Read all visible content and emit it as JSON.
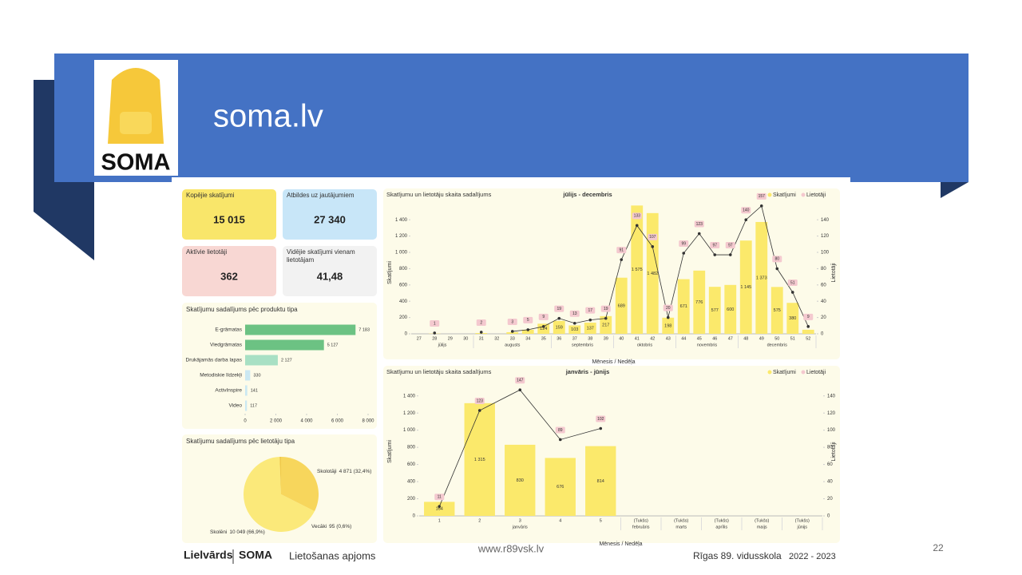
{
  "header": {
    "title": "soma.lv",
    "logo": "SOMA"
  },
  "kpis": [
    {
      "label": "Kopējie skatījumi",
      "value": "15 015"
    },
    {
      "label": "Atbildes uz jautājumiem",
      "value": "27 340"
    },
    {
      "label": "Aktīvie lietotāji",
      "value": "362"
    },
    {
      "label": "Vidējie skatījumi vienam lietotājam",
      "value": "41,48"
    }
  ],
  "chart_data": [
    {
      "type": "hbar",
      "title": "Skatījumu sadalījums pēc produktu tipa",
      "categories": [
        "E-grāmatas",
        "Viedgrāmatas",
        "Drukājamās darba lapas",
        "Metodiskie līdzekļi",
        "ActivInspire",
        "Video"
      ],
      "values": [
        7183,
        5127,
        2127,
        330,
        141,
        117
      ],
      "value_labels": [
        "7 183",
        "5 127",
        "2 127",
        "330",
        "141",
        "117"
      ],
      "colors": [
        "#6cc283",
        "#6cc283",
        "#a8e0c4",
        "#cbe8f2",
        "#cbe8f2",
        "#cbe8f2"
      ],
      "xlim": [
        0,
        8000
      ],
      "xticks": [
        0,
        {
          "value": 2000,
          "label": "2 000"
        },
        {
          "value": 4000,
          "label": "4 000"
        },
        {
          "value": 6000,
          "label": "6 000"
        },
        {
          "value": 8000,
          "label": "8 000"
        }
      ]
    },
    {
      "type": "pie",
      "title": "Skatījumu sadalījums pēc lietotāju tipa",
      "categories": [
        "Skolotāji",
        "Skolēni",
        "Vecāki"
      ],
      "values": [
        4871,
        10049,
        95
      ],
      "value_labels": [
        "4 871 (32,4%)",
        "10 049 (66,9%)",
        "95 (0,6%)"
      ],
      "colors": [
        "#f7d65c",
        "#fbe97a",
        "#f0c94a"
      ]
    },
    {
      "type": "combo",
      "title": "Skatījumu un lietotāju skaita sadalījums",
      "subtitle": "jūlijs - decembris",
      "x_label": "Mēnesis / Nedēļa",
      "y_label": "Skatījumi",
      "y2_label": "Lietotāji",
      "label_color": "#f4c9cf",
      "categories": [
        "27",
        "28",
        "29",
        "30",
        "31",
        "32",
        "33",
        "34",
        "35",
        "36",
        "37",
        "38",
        "39",
        "40",
        "41",
        "42",
        "43",
        "44",
        "45",
        "46",
        "47",
        "48",
        "49",
        "50",
        "51",
        "52"
      ],
      "x_groups": [
        "jūlijs",
        null,
        null,
        null,
        "augusts",
        null,
        null,
        null,
        null,
        "septembris",
        null,
        null,
        null,
        "oktobris",
        null,
        null,
        null,
        "novembris",
        null,
        null,
        null,
        "decembris",
        null,
        null,
        null,
        null
      ],
      "series": [
        {
          "name": "Skatījumi",
          "color": "#fbe96b",
          "values": [
            null,
            3,
            null,
            null,
            10,
            null,
            20,
            50,
            124,
            159,
            103,
            137,
            217,
            689,
            1575,
            1482,
            198,
            671,
            776,
            577,
            600,
            1145,
            1373,
            575,
            380,
            50
          ],
          "value_labels": [
            null,
            null,
            null,
            null,
            null,
            null,
            null,
            null,
            "124",
            "159",
            "103",
            "137",
            "217",
            "689",
            "1 575",
            "1 482",
            "198",
            "671",
            "776",
            "577",
            "600",
            "1 145",
            "1 373",
            "575",
            "380",
            null
          ]
        },
        {
          "name": "Lietotāji",
          "color": "#333333",
          "axis": "y2",
          "values": [
            null,
            1,
            null,
            null,
            2,
            null,
            3,
            5,
            9,
            19,
            13,
            17,
            19,
            91,
            133,
            107,
            20,
            99,
            123,
            97,
            97,
            140,
            157,
            80,
            51,
            9
          ]
        }
      ],
      "ylim": [
        0,
        1500
      ],
      "yticks": [
        0,
        200,
        400,
        600,
        800,
        {
          "value": 1000,
          "label": "1 000"
        },
        {
          "value": 1200,
          "label": "1 200"
        },
        {
          "value": 1400,
          "label": "1 400"
        }
      ],
      "y2lim": [
        0,
        150
      ],
      "y2ticks": [
        0,
        20,
        40,
        60,
        80,
        100,
        120,
        140
      ]
    },
    {
      "type": "combo",
      "title": "Skatījumu un lietotāju skaita sadalījums",
      "subtitle": "janvāris - jūnijs",
      "x_label": "Mēnesis / Nedēļa",
      "y_label": "Skatījumi",
      "y2_label": "Lietotāji",
      "label_color": "#f4c9cf",
      "categories": [
        "1",
        "2",
        "3",
        "4",
        "5",
        "(Tukšs)",
        "(Tukšs)",
        "(Tukšs)",
        "(Tukšs)",
        "(Tukšs)"
      ],
      "x_groups": [
        "janvāris",
        null,
        null,
        null,
        null,
        "februāris",
        "marts",
        "aprīlis",
        "maijs",
        "jūnijs"
      ],
      "series": [
        {
          "name": "Skatījumi",
          "color": "#fbe96b",
          "values": [
            164,
            1315,
            830,
            676,
            814,
            null,
            null,
            null,
            null,
            null
          ],
          "value_labels": [
            "164",
            "1 315",
            "830",
            "676",
            "814",
            null,
            null,
            null,
            null,
            null
          ]
        },
        {
          "name": "Lietotāji",
          "color": "#333333",
          "axis": "y2",
          "values": [
            11,
            123,
            147,
            89,
            102,
            null,
            null,
            null,
            null,
            null
          ]
        }
      ],
      "ylim": [
        0,
        1500
      ],
      "yticks": [
        0,
        200,
        400,
        600,
        800,
        {
          "value": 1000,
          "label": "1 000"
        },
        {
          "value": 1200,
          "label": "1 200"
        },
        {
          "value": 1400,
          "label": "1 400"
        }
      ],
      "y2lim": [
        0,
        150
      ],
      "y2ticks": [
        0,
        20,
        40,
        60,
        80,
        100,
        120,
        140
      ]
    }
  ],
  "footer": {
    "brand_1": "Lielvārds",
    "brand_2": "SOMA",
    "topic": "Lietošanas apjoms",
    "website": "www.r89vsk.lv",
    "school": "Rīgas 89. vidusskola",
    "years": "2022 - 2023",
    "page": "22"
  }
}
